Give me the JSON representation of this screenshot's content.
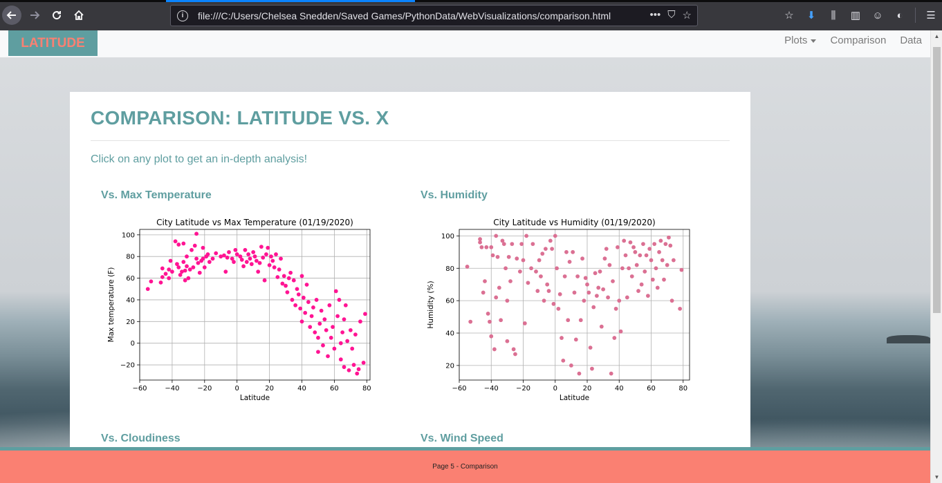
{
  "browser": {
    "url": "file:///C:/Users/Chelsea Snedden/Saved Games/PythonData/WebVisualizations/comparison.html",
    "url_actions": [
      "•••",
      "⛉",
      "☆"
    ],
    "toolbar_icons": [
      "☆",
      "⬇",
      "⫼",
      "▥",
      "☺",
      "◐",
      "☰"
    ]
  },
  "navbar": {
    "brand": "LATITUDE",
    "links": [
      "Plots",
      "Comparison",
      "Data"
    ]
  },
  "main": {
    "title": "COMPARISON: LATITUDE VS. X",
    "subtitle": "Click on any plot to get an in-depth analysis!",
    "sections": [
      "Vs. Max Temperature",
      "Vs. Humidity",
      "Vs. Cloudiness",
      "Vs. Wind Speed"
    ]
  },
  "footer": {
    "text": "Page 5 - Comparison"
  },
  "colors": {
    "accent": "#5f9ea0",
    "brand_text": "#fa8072",
    "footer_bg": "#fa8072",
    "temp_points": "#ff1493",
    "humidity_points": "#db7093"
  },
  "chart_data": [
    {
      "type": "scatter",
      "title": "City Latitude vs Max Temperature (01/19/2020)",
      "xlabel": "Latitude",
      "ylabel": "Max temperature (F)",
      "xlim": [
        -60,
        82
      ],
      "ylim": [
        -34,
        105
      ],
      "xticks": [
        -60,
        -40,
        -20,
        0,
        20,
        40,
        60,
        80
      ],
      "yticks": [
        -20,
        0,
        20,
        40,
        60,
        80,
        100
      ],
      "grid": true,
      "color": "#ff1493",
      "points": [
        [
          -55,
          50
        ],
        [
          -53,
          57
        ],
        [
          -47,
          56
        ],
        [
          -46,
          61
        ],
        [
          -46,
          69
        ],
        [
          -44,
          64
        ],
        [
          -42,
          60
        ],
        [
          -42,
          68
        ],
        [
          -41,
          76
        ],
        [
          -40,
          66
        ],
        [
          -38,
          94
        ],
        [
          -37,
          73
        ],
        [
          -36,
          91
        ],
        [
          -36,
          70
        ],
        [
          -35,
          63
        ],
        [
          -34,
          66
        ],
        [
          -33,
          75
        ],
        [
          -33,
          92
        ],
        [
          -32,
          58
        ],
        [
          -32,
          67
        ],
        [
          -31,
          80
        ],
        [
          -31,
          71
        ],
        [
          -30,
          60
        ],
        [
          -29,
          68
        ],
        [
          -28,
          86
        ],
        [
          -27,
          70
        ],
        [
          -26,
          90
        ],
        [
          -25,
          101
        ],
        [
          -25,
          78
        ],
        [
          -24,
          74
        ],
        [
          -23,
          65
        ],
        [
          -22,
          76
        ],
        [
          -21,
          88
        ],
        [
          -21,
          78
        ],
        [
          -20,
          70
        ],
        [
          -19,
          80
        ],
        [
          -18,
          82
        ],
        [
          -17,
          75
        ],
        [
          -15,
          78
        ],
        [
          -13,
          83
        ],
        [
          -10,
          80
        ],
        [
          -8,
          81
        ],
        [
          -7,
          66
        ],
        [
          -6,
          79
        ],
        [
          -5,
          84
        ],
        [
          -3,
          78
        ],
        [
          -2,
          75
        ],
        [
          -1,
          86
        ],
        [
          0,
          82
        ],
        [
          2,
          80
        ],
        [
          3,
          77
        ],
        [
          4,
          71
        ],
        [
          5,
          86
        ],
        [
          6,
          75
        ],
        [
          7,
          82
        ],
        [
          8,
          78
        ],
        [
          9,
          73
        ],
        [
          10,
          84
        ],
        [
          11,
          80
        ],
        [
          12,
          76
        ],
        [
          13,
          66
        ],
        [
          14,
          74
        ],
        [
          15,
          89
        ],
        [
          16,
          79
        ],
        [
          17,
          58
        ],
        [
          18,
          82
        ],
        [
          19,
          88
        ],
        [
          20,
          72
        ],
        [
          21,
          80
        ],
        [
          22,
          76
        ],
        [
          23,
          70
        ],
        [
          24,
          82
        ],
        [
          25,
          61
        ],
        [
          26,
          68
        ],
        [
          27,
          78
        ],
        [
          28,
          55
        ],
        [
          29,
          62
        ],
        [
          30,
          53
        ],
        [
          31,
          47
        ],
        [
          32,
          60
        ],
        [
          33,
          65
        ],
        [
          34,
          40
        ],
        [
          35,
          58
        ],
        [
          36,
          35
        ],
        [
          37,
          50
        ],
        [
          38,
          45
        ],
        [
          39,
          32
        ],
        [
          40,
          62
        ],
        [
          40,
          20
        ],
        [
          41,
          42
        ],
        [
          42,
          28
        ],
        [
          43,
          54
        ],
        [
          44,
          38
        ],
        [
          45,
          15
        ],
        [
          46,
          25
        ],
        [
          47,
          33
        ],
        [
          48,
          10
        ],
        [
          49,
          40
        ],
        [
          50,
          5
        ],
        [
          50,
          -8
        ],
        [
          51,
          18
        ],
        [
          52,
          30
        ],
        [
          53,
          -2
        ],
        [
          54,
          22
        ],
        [
          55,
          12
        ],
        [
          56,
          -12
        ],
        [
          57,
          35
        ],
        [
          58,
          5
        ],
        [
          59,
          15
        ],
        [
          60,
          -5
        ],
        [
          61,
          48
        ],
        [
          62,
          25
        ],
        [
          63,
          40
        ],
        [
          64,
          -15
        ],
        [
          65,
          10
        ],
        [
          66,
          22
        ],
        [
          66,
          -22
        ],
        [
          67,
          35
        ],
        [
          68,
          2
        ],
        [
          69,
          -25
        ],
        [
          70,
          12
        ],
        [
          71,
          -5
        ],
        [
          72,
          -20
        ],
        [
          73,
          8
        ],
        [
          74,
          -28
        ],
        [
          75,
          -24
        ],
        [
          76,
          20
        ],
        [
          78,
          -18
        ],
        [
          79,
          27
        ],
        [
          64,
          0
        ]
      ]
    },
    {
      "type": "scatter",
      "title": "City Latitude vs Humidity (01/19/2020)",
      "xlabel": "Latitude",
      "ylabel": "Humidity (%)",
      "xlim": [
        -60,
        84
      ],
      "ylim": [
        11,
        104
      ],
      "xticks": [
        -60,
        -40,
        -20,
        0,
        20,
        40,
        60,
        80
      ],
      "yticks": [
        20,
        40,
        60,
        80,
        100
      ],
      "grid": true,
      "color": "#db7093",
      "points": [
        [
          -55,
          81
        ],
        [
          -53,
          47
        ],
        [
          -47,
          98
        ],
        [
          -47,
          96
        ],
        [
          -46,
          93
        ],
        [
          -45,
          65
        ],
        [
          -44,
          72
        ],
        [
          -43,
          93
        ],
        [
          -42,
          52
        ],
        [
          -41,
          47
        ],
        [
          -40,
          93
        ],
        [
          -40,
          38
        ],
        [
          -39,
          88
        ],
        [
          -38,
          30
        ],
        [
          -37,
          100
        ],
        [
          -37,
          62
        ],
        [
          -36,
          87
        ],
        [
          -35,
          68
        ],
        [
          -34,
          48
        ],
        [
          -33,
          97
        ],
        [
          -32,
          95
        ],
        [
          -31,
          80
        ],
        [
          -30,
          35
        ],
        [
          -30,
          60
        ],
        [
          -29,
          87
        ],
        [
          -28,
          72
        ],
        [
          -27,
          95
        ],
        [
          -26,
          30
        ],
        [
          -25,
          27
        ],
        [
          -24,
          86
        ],
        [
          -22,
          78
        ],
        [
          -21,
          95
        ],
        [
          -20,
          85
        ],
        [
          -19,
          46
        ],
        [
          -18,
          100
        ],
        [
          -17,
          71
        ],
        [
          -15,
          80
        ],
        [
          -14,
          95
        ],
        [
          -12,
          78
        ],
        [
          -11,
          66
        ],
        [
          -10,
          85
        ],
        [
          -9,
          75
        ],
        [
          -8,
          89
        ],
        [
          -7,
          60
        ],
        [
          -6,
          92
        ],
        [
          -5,
          70
        ],
        [
          -4,
          66
        ],
        [
          -3,
          97
        ],
        [
          -2,
          92
        ],
        [
          -1,
          58
        ],
        [
          0,
          100
        ],
        [
          1,
          80
        ],
        [
          2,
          55
        ],
        [
          3,
          64
        ],
        [
          4,
          37
        ],
        [
          5,
          23
        ],
        [
          6,
          75
        ],
        [
          7,
          90
        ],
        [
          8,
          48
        ],
        [
          9,
          84
        ],
        [
          10,
          20
        ],
        [
          11,
          90
        ],
        [
          12,
          65
        ],
        [
          13,
          36
        ],
        [
          14,
          75
        ],
        [
          15,
          15
        ],
        [
          16,
          48
        ],
        [
          17,
          86
        ],
        [
          18,
          60
        ],
        [
          19,
          74
        ],
        [
          20,
          70
        ],
        [
          21,
          65
        ],
        [
          22,
          31
        ],
        [
          23,
          18
        ],
        [
          24,
          56
        ],
        [
          25,
          77
        ],
        [
          26,
          63
        ],
        [
          27,
          68
        ],
        [
          28,
          78
        ],
        [
          29,
          44
        ],
        [
          30,
          67
        ],
        [
          31,
          86
        ],
        [
          32,
          92
        ],
        [
          33,
          62
        ],
        [
          34,
          82
        ],
        [
          35,
          15
        ],
        [
          36,
          72
        ],
        [
          37,
          37
        ],
        [
          38,
          55
        ],
        [
          39,
          93
        ],
        [
          40,
          60
        ],
        [
          41,
          41
        ],
        [
          42,
          80
        ],
        [
          43,
          97
        ],
        [
          44,
          88
        ],
        [
          45,
          62
        ],
        [
          46,
          80
        ],
        [
          47,
          96
        ],
        [
          48,
          75
        ],
        [
          49,
          93
        ],
        [
          50,
          90
        ],
        [
          51,
          82
        ],
        [
          52,
          66
        ],
        [
          53,
          88
        ],
        [
          54,
          70
        ],
        [
          55,
          95
        ],
        [
          56,
          78
        ],
        [
          57,
          88
        ],
        [
          58,
          63
        ],
        [
          59,
          92
        ],
        [
          60,
          85
        ],
        [
          61,
          73
        ],
        [
          62,
          95
        ],
        [
          63,
          80
        ],
        [
          64,
          68
        ],
        [
          65,
          90
        ],
        [
          66,
          97
        ],
        [
          67,
          85
        ],
        [
          68,
          73
        ],
        [
          69,
          95
        ],
        [
          70,
          82
        ],
        [
          71,
          99
        ],
        [
          72,
          94
        ],
        [
          73,
          60
        ],
        [
          74,
          85
        ],
        [
          78,
          55
        ],
        [
          79,
          79
        ]
      ]
    }
  ]
}
